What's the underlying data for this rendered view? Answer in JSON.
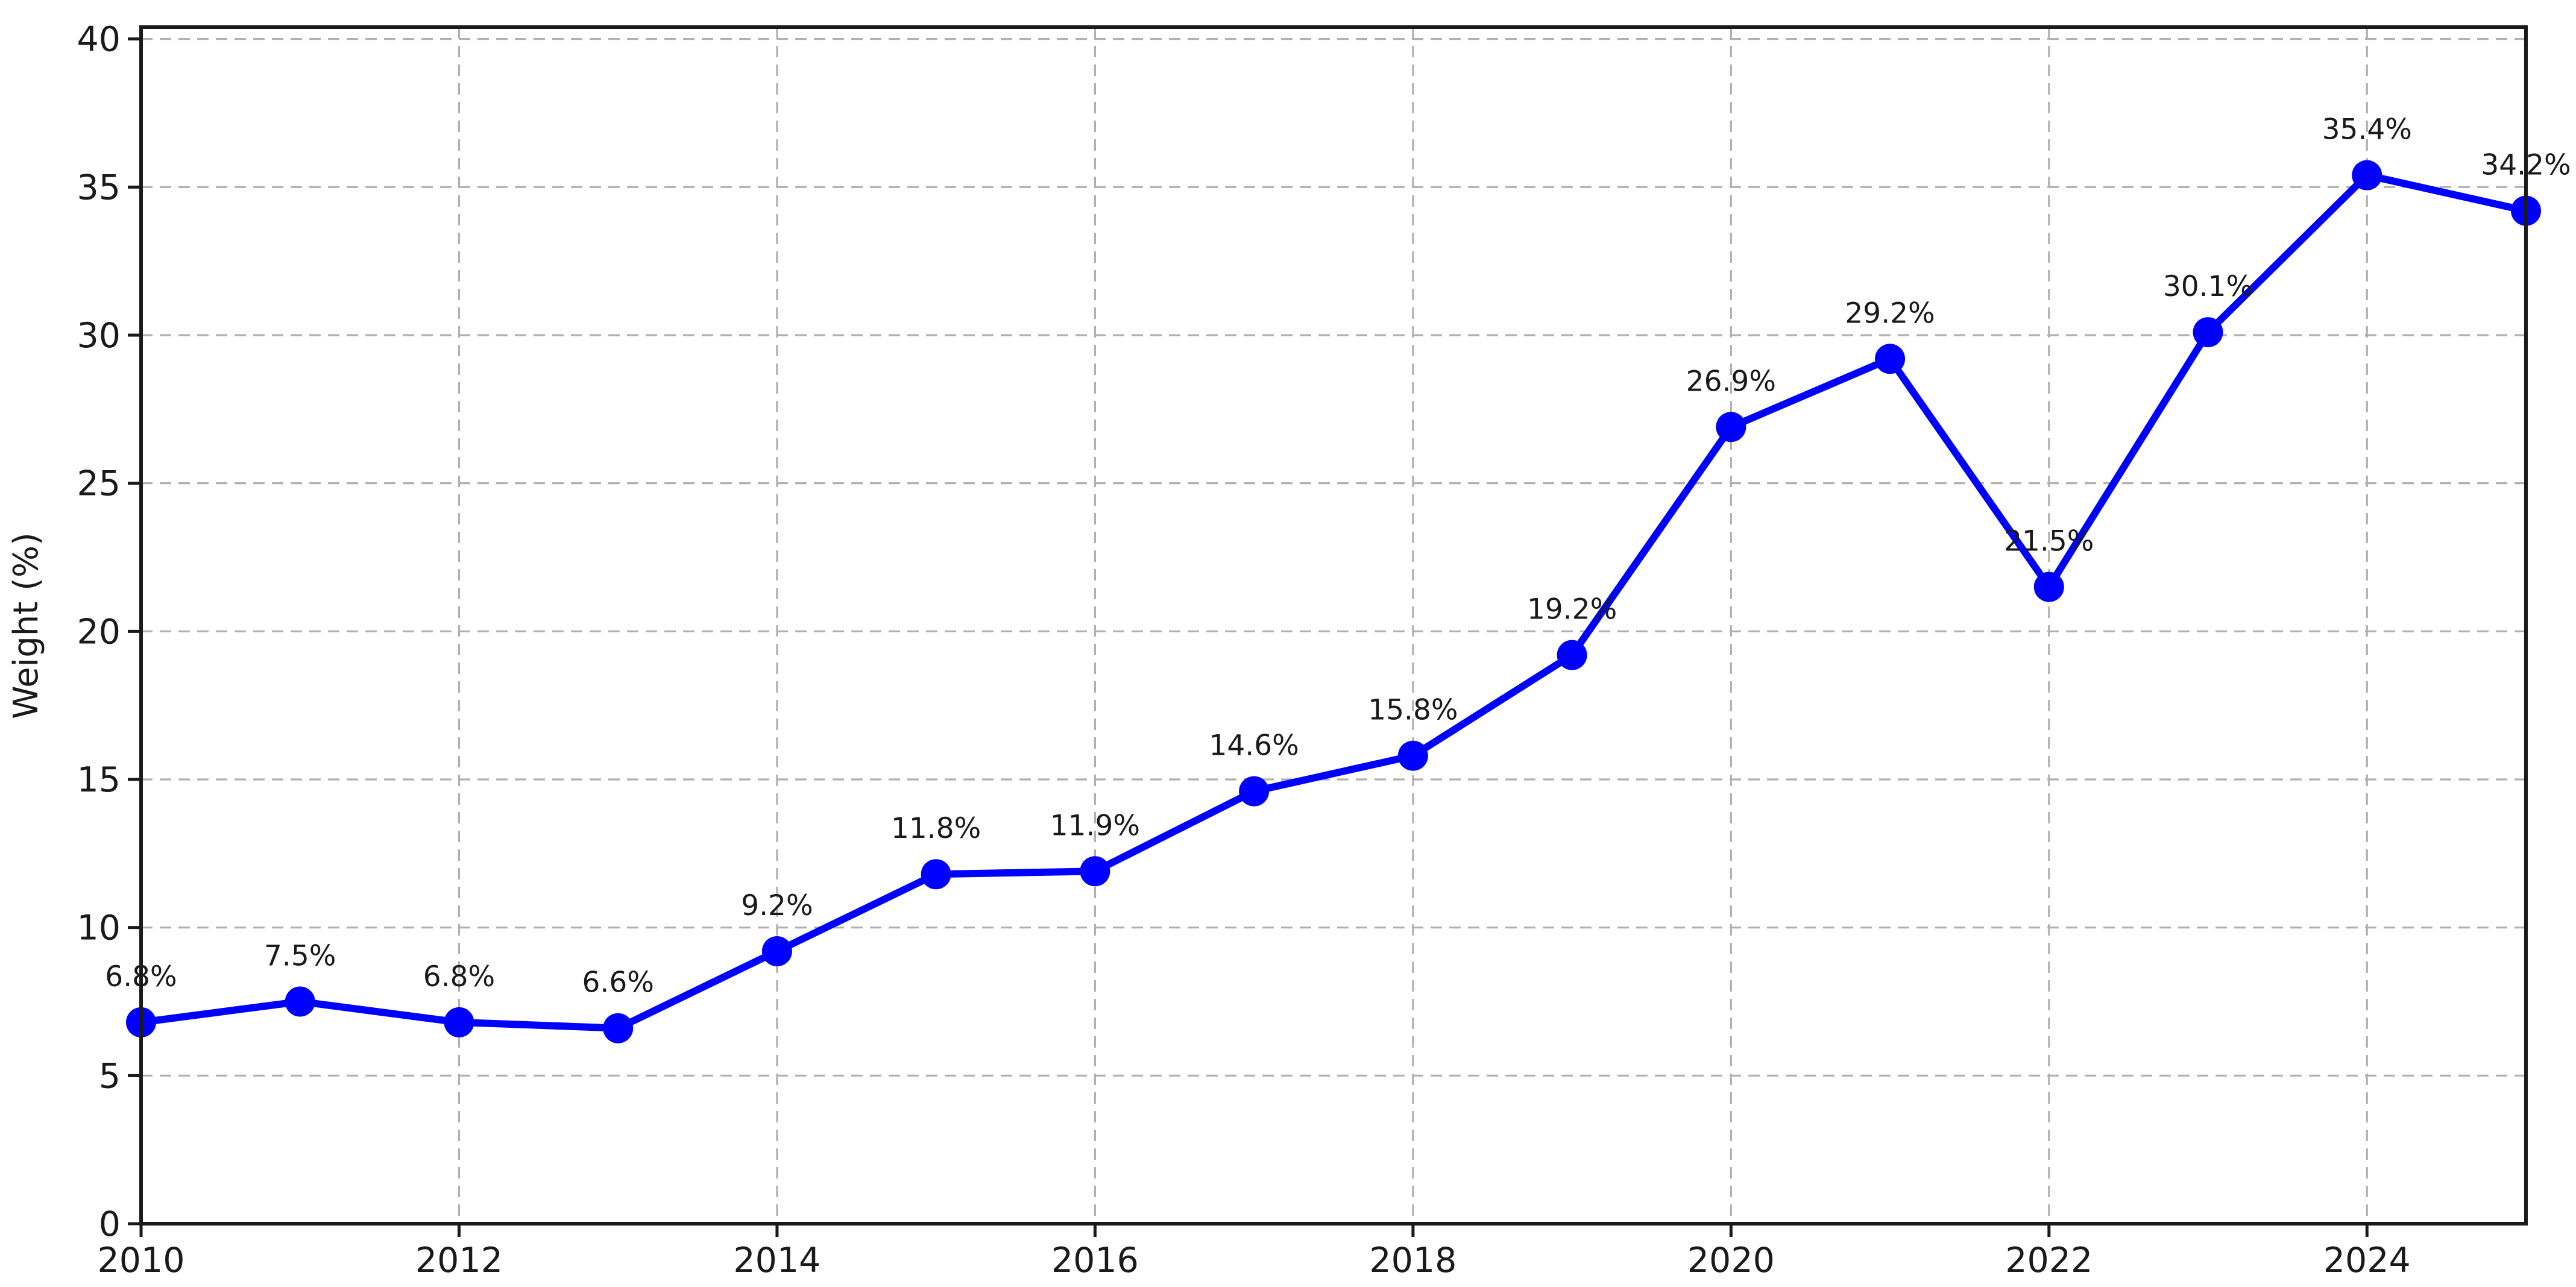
{
  "chart_data": {
    "type": "line",
    "x": [
      2010,
      2011,
      2012,
      2013,
      2014,
      2015,
      2016,
      2017,
      2018,
      2019,
      2020,
      2021,
      2022,
      2023,
      2024,
      2025
    ],
    "series": [
      {
        "name": "Weight",
        "values": [
          6.8,
          7.5,
          6.8,
          6.6,
          9.2,
          11.8,
          11.9,
          14.6,
          15.8,
          19.2,
          26.9,
          29.2,
          21.5,
          30.1,
          35.4,
          34.2
        ],
        "point_labels": [
          "6.8%",
          "7.5%",
          "6.8%",
          "6.6%",
          "9.2%",
          "11.8%",
          "11.9%",
          "14.6%",
          "15.8%",
          "19.2%",
          "26.9%",
          "29.2%",
          "21.5%",
          "30.1%",
          "35.4%",
          "34.2%"
        ]
      }
    ],
    "title": "",
    "xlabel": "",
    "ylabel": "Weight (%)",
    "xlim": [
      2010,
      2025
    ],
    "ylim": [
      0,
      40.4
    ],
    "yticks": [
      0,
      5,
      10,
      15,
      20,
      25,
      30,
      35,
      40
    ],
    "ytick_labels": [
      "0",
      "5",
      "10",
      "15",
      "20",
      "25",
      "30",
      "35",
      "40"
    ],
    "xticks": [
      2010,
      2012,
      2014,
      2016,
      2018,
      2020,
      2022,
      2024
    ],
    "xtick_labels": [
      "2010",
      "2012",
      "2014",
      "2016",
      "2018",
      "2020",
      "2022",
      "2024"
    ],
    "grid": true,
    "grid_style": "dashed",
    "legend_position": "none",
    "colors": {
      "line": "#0000ff",
      "marker": "#0000ff",
      "grid": "#b0b0b0",
      "axis": "#1a1a1a",
      "tick_label": "#1a1a1a",
      "point_label": "#1a1a1a",
      "background": "#ffffff"
    }
  }
}
